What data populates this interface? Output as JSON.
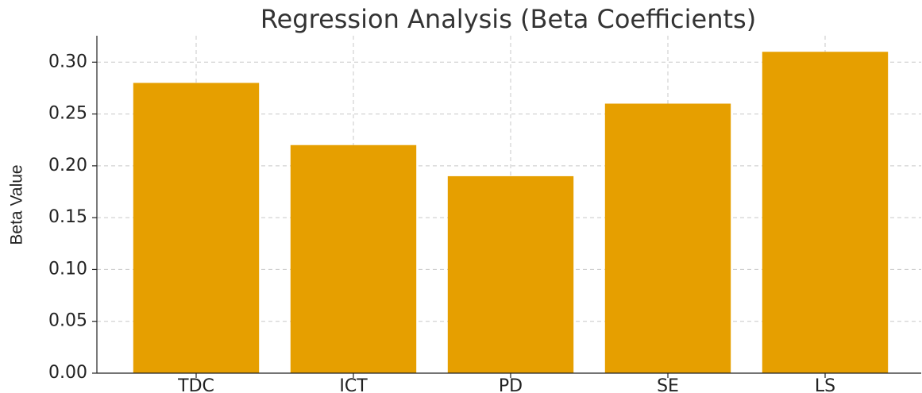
{
  "chart_data": {
    "type": "bar",
    "title": "Regression Analysis (Beta Coefficients)",
    "y_label": "Beta Value",
    "categories": [
      "TDC",
      "ICT",
      "PD",
      "SE",
      "LS"
    ],
    "values": [
      0.28,
      0.22,
      0.19,
      0.26,
      0.31
    ],
    "color": "#E69F00",
    "ylim": [
      0,
      0.3255
    ],
    "yticks": [
      {
        "value": 0,
        "label": "0.00"
      },
      0.05,
      {
        "value": 0.1,
        "label": "0.10"
      },
      0.15,
      {
        "value": 0.2,
        "label": "0.20"
      },
      0.25,
      {
        "value": 0.3,
        "label": "0.30"
      }
    ],
    "grid": true
  }
}
